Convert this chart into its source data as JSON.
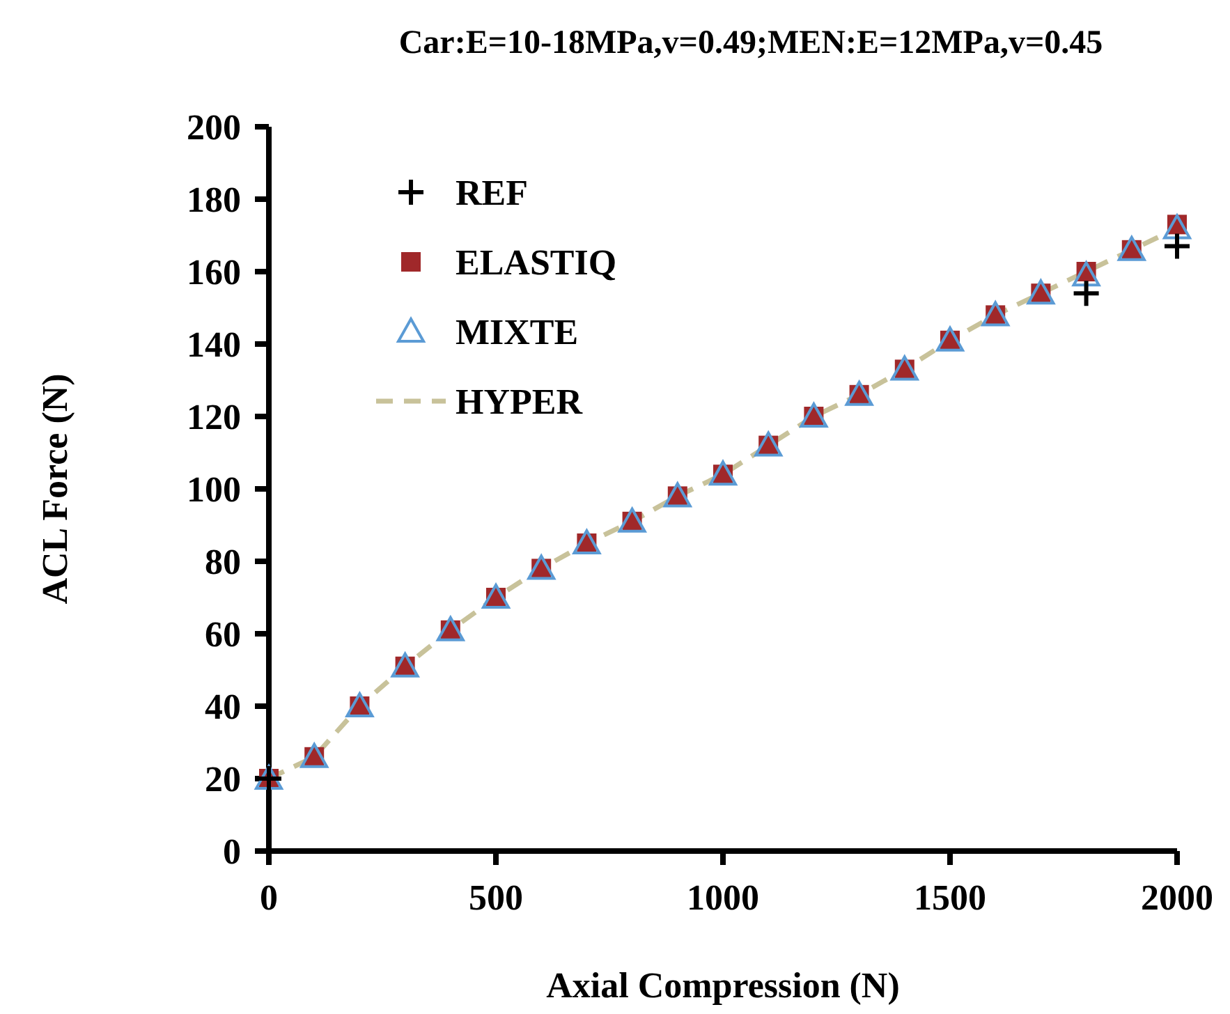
{
  "chart_data": {
    "type": "scatter",
    "title": "Car:E=10-18MPa,v=0.49;MEN:E=12MPa,v=0.45",
    "xlabel": "Axial Compression (N)",
    "ylabel": "ACL Force (N)",
    "x": [
      0,
      100,
      200,
      300,
      400,
      500,
      600,
      700,
      800,
      900,
      1000,
      1100,
      1200,
      1300,
      1400,
      1500,
      1600,
      1700,
      1800,
      1900,
      2000
    ],
    "xlim": [
      0,
      2000
    ],
    "xticks": [
      0,
      500,
      1000,
      1500,
      2000
    ],
    "ylim": [
      0,
      200
    ],
    "yticks": [
      0,
      20,
      40,
      60,
      80,
      100,
      120,
      140,
      160,
      180,
      200
    ],
    "grid": false,
    "legend": "top left",
    "series": [
      {
        "name": "REF",
        "type": "scatter",
        "marker": "cross",
        "color": "#000000",
        "values": [
          20,
          null,
          null,
          null,
          null,
          null,
          null,
          null,
          null,
          null,
          null,
          null,
          null,
          null,
          null,
          null,
          null,
          null,
          154,
          null,
          167
        ]
      },
      {
        "name": "ELASTIQ",
        "type": "scatter",
        "marker": "square",
        "color": "#a0282a",
        "values": [
          20,
          26,
          40,
          51,
          61,
          70,
          78,
          85,
          91,
          98,
          104,
          112,
          120,
          126,
          133,
          141,
          148,
          154,
          160,
          166,
          173
        ]
      },
      {
        "name": "MIXTE",
        "type": "scatter",
        "marker": "triangle",
        "color": "#5b9bd5",
        "values": [
          20,
          26,
          40,
          51,
          61,
          70,
          78,
          85,
          91,
          98,
          104,
          112,
          120,
          126,
          133,
          141,
          148,
          154,
          159,
          166,
          172
        ]
      },
      {
        "name": "HYPER",
        "type": "line",
        "marker": "none",
        "line_style": "dashed",
        "color": "#c8c29a",
        "values": [
          20,
          26,
          40,
          51,
          61,
          70,
          78,
          85,
          91,
          98,
          104,
          112,
          120,
          126,
          133,
          141,
          148,
          154,
          160,
          166,
          172
        ]
      }
    ]
  }
}
